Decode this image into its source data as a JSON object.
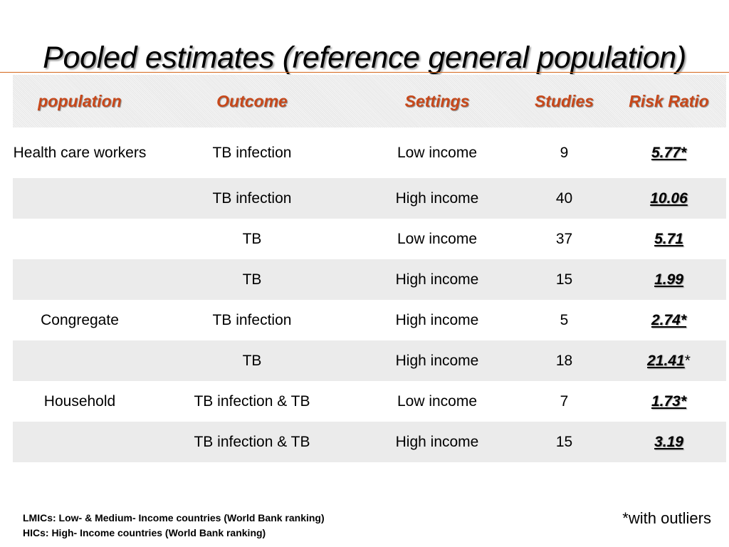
{
  "slide": {
    "title": "Pooled estimates (reference general population)"
  },
  "table": {
    "headers": [
      "population",
      "Outcome",
      "Settings",
      "Studies",
      "Risk Ratio"
    ],
    "rows": [
      {
        "population": "Health care workers",
        "outcome": "TB infection",
        "settings": "Low income",
        "studies": "9",
        "risk_ratio": "5.77*",
        "rr_suffix": ""
      },
      {
        "population": "",
        "outcome": "TB infection",
        "settings": "High income",
        "studies": "40",
        "risk_ratio": "10.06",
        "rr_suffix": ""
      },
      {
        "population": "",
        "outcome": "TB",
        "settings": "Low income",
        "studies": "37",
        "risk_ratio": "5.71",
        "rr_suffix": ""
      },
      {
        "population": "",
        "outcome": "TB",
        "settings": "High income",
        "studies": "15",
        "risk_ratio": "1.99",
        "rr_suffix": ""
      },
      {
        "population": "Congregate",
        "outcome": "TB infection",
        "settings": "High income",
        "studies": "5",
        "risk_ratio": "2.74*",
        "rr_suffix": ""
      },
      {
        "population": "",
        "outcome": "TB",
        "settings": "High income",
        "studies": "18",
        "risk_ratio": "21.41",
        "rr_suffix": "*"
      },
      {
        "population": "Household",
        "outcome": "TB infection & TB",
        "settings": "Low income",
        "studies": "7",
        "risk_ratio": "1.73*",
        "rr_suffix": ""
      },
      {
        "population": "",
        "outcome": "TB infection & TB",
        "settings": "High income",
        "studies": "15",
        "risk_ratio": "3.19",
        "rr_suffix": ""
      }
    ]
  },
  "footnotes": {
    "lmics": "LMICs: Low- & Medium- Income countries (World Bank ranking)",
    "hics": "HICs: High- Income countries (World Bank ranking)",
    "outliers": "*with outliers"
  },
  "colors": {
    "header_text": "#c8481a",
    "title_rule": "#d4651a",
    "row_stripe": "#ebebeb"
  }
}
